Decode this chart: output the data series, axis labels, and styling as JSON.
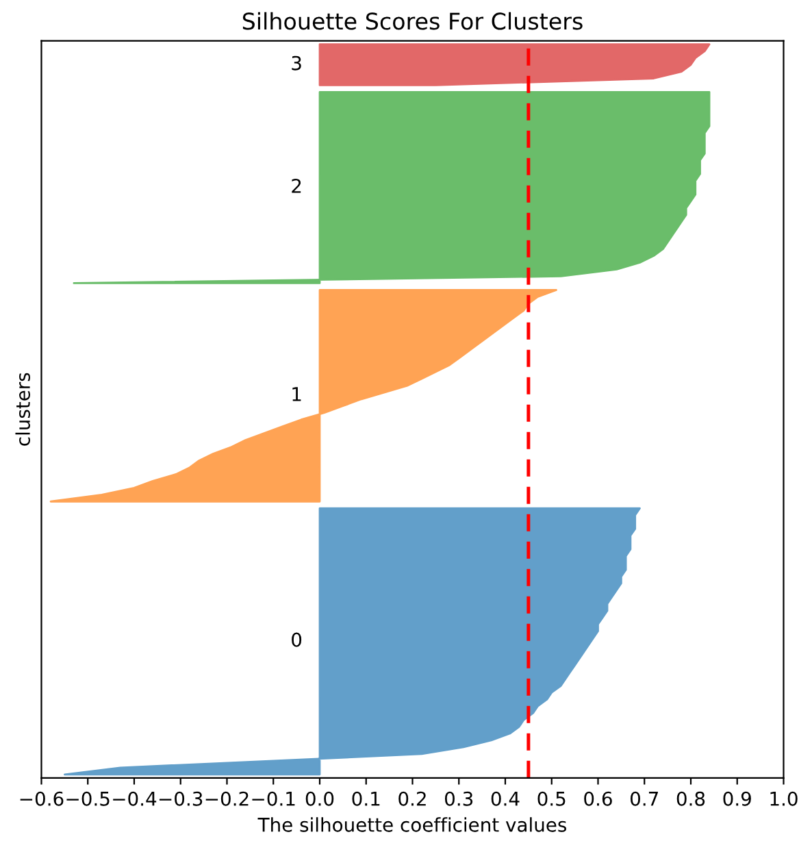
{
  "chart_data": {
    "type": "area",
    "orientation": "horizontal",
    "title": "Silhouette Scores For Clusters",
    "xlabel": "The silhouette coefficient values",
    "ylabel": "clusters",
    "categories": [
      null,
      null,
      null,
      null,
      null,
      null,
      null,
      null,
      null,
      null,
      null,
      null,
      null,
      null,
      null,
      null,
      null,
      null,
      null,
      null,
      null,
      null,
      null,
      null,
      null,
      null,
      null,
      null,
      null,
      null,
      null,
      null,
      null,
      null,
      null,
      null,
      null,
      null,
      null,
      null,
      null,
      null,
      null,
      null,
      null,
      null,
      null,
      null,
      null,
      null,
      null,
      null,
      null,
      null,
      null,
      null,
      null,
      null,
      null,
      null,
      null,
      null,
      null,
      null,
      null,
      null,
      null,
      null,
      null,
      null,
      null,
      null,
      null,
      null,
      null,
      null,
      null,
      null,
      null,
      null,
      null,
      null,
      null,
      null,
      null,
      null,
      null,
      null,
      null,
      null,
      null,
      null,
      null,
      null,
      null,
      null,
      null,
      null,
      null,
      null,
      null,
      null,
      null,
      null,
      null,
      null,
      null,
      null
    ],
    "series": [
      {
        "name": "0",
        "color": "#629fca",
        "values": [
          null,
          null,
          null,
          null,
          null,
          null,
          null,
          null,
          null,
          null,
          null,
          null,
          null,
          null,
          null,
          null,
          null,
          null,
          null,
          null,
          null,
          null,
          null,
          null,
          null,
          null,
          null,
          null,
          null,
          null,
          null,
          null,
          null,
          null,
          null,
          null,
          null,
          null,
          null,
          null,
          null,
          null,
          null,
          null,
          null,
          null,
          null,
          null,
          null,
          null,
          null,
          null,
          null,
          null,
          null,
          null,
          null,
          null,
          null,
          null,
          null,
          null,
          null,
          null,
          null,
          null,
          null,
          null,
          0.69,
          0.68,
          0.68,
          0.68,
          0.67,
          0.67,
          0.67,
          0.66,
          0.66,
          0.66,
          0.65,
          0.65,
          0.64,
          0.63,
          0.62,
          0.62,
          0.61,
          0.6,
          0.6,
          0.59,
          0.58,
          0.57,
          0.56,
          0.55,
          0.54,
          0.53,
          0.52,
          0.5,
          0.49,
          0.47,
          0.46,
          0.44,
          0.43,
          0.41,
          0.37,
          0.31,
          0.22,
          -0.1,
          -0.43,
          -0.55
        ]
      },
      {
        "name": "1",
        "color": "#ffa354",
        "values": [
          null,
          null,
          null,
          null,
          null,
          null,
          null,
          null,
          null,
          null,
          null,
          null,
          null,
          null,
          null,
          null,
          null,
          null,
          null,
          null,
          null,
          null,
          null,
          null,
          null,
          null,
          null,
          null,
          null,
          null,
          null,
          null,
          null,
          null,
          null,
          null,
          0.51,
          0.47,
          0.45,
          0.44,
          0.42,
          0.4,
          0.38,
          0.36,
          0.34,
          0.32,
          0.3,
          0.28,
          0.25,
          0.22,
          0.19,
          0.14,
          0.09,
          0.05,
          0.01,
          -0.04,
          -0.08,
          -0.12,
          -0.16,
          -0.19,
          -0.23,
          -0.26,
          -0.28,
          -0.31,
          -0.36,
          -0.4,
          -0.47,
          -0.58,
          null,
          null,
          null,
          null,
          null,
          null,
          null,
          null,
          null,
          null,
          null,
          null,
          null,
          null,
          null,
          null,
          null,
          null,
          null,
          null,
          null,
          null,
          null,
          null,
          null,
          null,
          null,
          null,
          null,
          null,
          null,
          null,
          null,
          null,
          null,
          null,
          null,
          null,
          null,
          null
        ]
      },
      {
        "name": "2",
        "color": "#6abd6a",
        "values": [
          null,
          null,
          null,
          null,
          null,
          null,
          null,
          0.84,
          0.84,
          0.84,
          0.84,
          0.84,
          0.84,
          0.83,
          0.83,
          0.83,
          0.83,
          0.82,
          0.82,
          0.82,
          0.81,
          0.81,
          0.81,
          0.8,
          0.79,
          0.79,
          0.78,
          0.77,
          0.76,
          0.75,
          0.74,
          0.72,
          0.69,
          0.64,
          0.52,
          -0.53,
          null,
          null,
          null,
          null,
          null,
          null,
          null,
          null,
          null,
          null,
          null,
          null,
          null,
          null,
          null,
          null,
          null,
          null,
          null,
          null,
          null,
          null,
          null,
          null,
          null,
          null,
          null,
          null,
          null,
          null,
          null,
          null,
          null,
          null,
          null,
          null,
          null,
          null,
          null,
          null,
          null,
          null,
          null,
          null,
          null,
          null,
          null,
          null,
          null,
          null,
          null,
          null,
          null,
          null,
          null,
          null,
          null,
          null,
          null,
          null,
          null,
          null,
          null,
          null,
          null,
          null,
          null,
          null,
          null,
          null,
          null,
          null
        ]
      },
      {
        "name": "3",
        "color": "#e26868",
        "values": [
          0.84,
          0.83,
          0.81,
          0.8,
          0.78,
          0.72,
          0.25,
          null,
          null,
          null,
          null,
          null,
          null,
          null,
          null,
          null,
          null,
          null,
          null,
          null,
          null,
          null,
          null,
          null,
          null,
          null,
          null,
          null,
          null,
          null,
          null,
          null,
          null,
          null,
          null,
          null,
          null,
          null,
          null,
          null,
          null,
          null,
          null,
          null,
          null,
          null,
          null,
          null,
          null,
          null,
          null,
          null,
          null,
          null,
          null,
          null,
          null,
          null,
          null,
          null,
          null,
          null,
          null,
          null,
          null,
          null,
          null,
          null,
          null,
          null,
          null,
          null,
          null,
          null,
          null,
          null,
          null,
          null,
          null,
          null,
          null,
          null,
          null,
          null,
          null,
          null,
          null,
          null,
          null,
          null,
          null,
          null,
          null,
          null,
          null,
          null,
          null,
          null,
          null,
          null,
          null,
          null,
          null,
          null,
          null,
          null,
          null,
          null
        ]
      }
    ],
    "xlim": [
      -0.6,
      1.0
    ],
    "xticks": [
      {
        "value": -0.6,
        "label": "−0.6"
      },
      {
        "value": -0.5,
        "label": "−0.5"
      },
      {
        "value": -0.4,
        "label": "−0.4"
      },
      {
        "value": -0.3,
        "label": "−0.3"
      },
      {
        "value": -0.2,
        "label": "−0.2"
      },
      {
        "value": -0.1,
        "label": "−0.1"
      },
      {
        "value": 0,
        "label": "0.0"
      },
      0.1,
      0.2,
      0.3,
      0.4,
      0.5,
      0.6,
      0.7,
      0.8,
      0.9,
      {
        "value": 1,
        "label": "1.0"
      }
    ],
    "ref_lines": [
      {
        "axis": "x",
        "value": 0.45,
        "color": "#ff0000",
        "line_style": "dashed"
      }
    ]
  }
}
